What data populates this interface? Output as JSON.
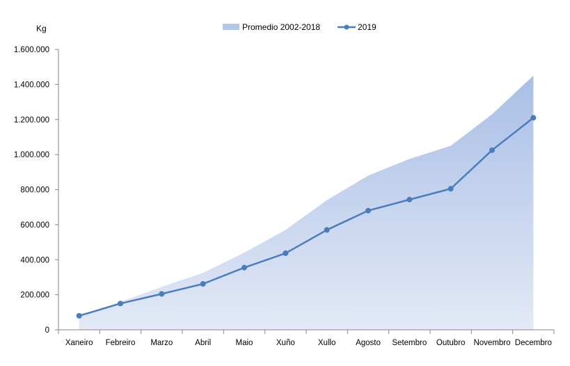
{
  "chart_data": {
    "type": "area",
    "ylabel": "Kg",
    "ylim": [
      0,
      1600000
    ],
    "yticks": [
      {
        "value": 0,
        "label": "0"
      },
      {
        "value": 200000,
        "label": "200.000"
      },
      {
        "value": 400000,
        "label": "400.000"
      },
      {
        "value": 600000,
        "label": "600.000"
      },
      {
        "value": 800000,
        "label": "800.000"
      },
      {
        "value": 1000000,
        "label": "1.000.000"
      },
      {
        "value": 1200000,
        "label": "1.200.000"
      },
      {
        "value": 1400000,
        "label": "1.400.000"
      },
      {
        "value": 1600000,
        "label": "1.600.000"
      }
    ],
    "categories": [
      "Xaneiro",
      "Febreiro",
      "Marzo",
      "Abril",
      "Maio",
      "Xuño",
      "Xullo",
      "Agosto",
      "Setembro",
      "Outubro",
      "Novembro",
      "Decembro"
    ],
    "legend_position": "top",
    "grid": false,
    "series": [
      {
        "name": "Promedio 2002-2018",
        "type": "area",
        "color": "#b4c7e7",
        "values": [
          80000,
          160000,
          245000,
          325000,
          440000,
          570000,
          740000,
          880000,
          975000,
          1050000,
          1230000,
          1450000
        ]
      },
      {
        "name": "2019",
        "type": "line",
        "color": "#4a7ebb",
        "values": [
          80000,
          150000,
          205000,
          262000,
          355000,
          437000,
          570000,
          680000,
          743000,
          805000,
          1025000,
          1210000
        ]
      }
    ]
  }
}
